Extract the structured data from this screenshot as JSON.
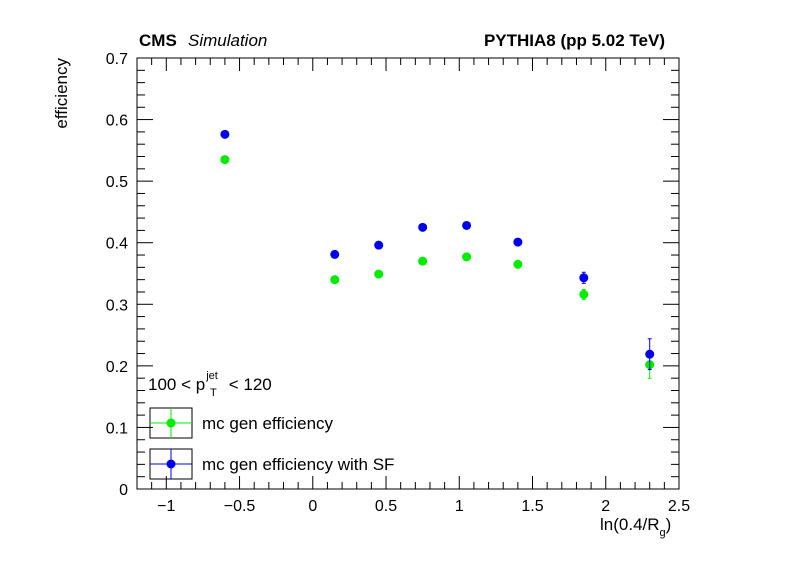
{
  "header": {
    "left_bold": "CMS",
    "left_italic": "Simulation",
    "right": "PYTHIA8 (pp 5.02 TeV)"
  },
  "annotation": {
    "prefix": "100 < p",
    "sup": "jet",
    "sub": "T",
    "suffix": " < 120"
  },
  "chart_data": {
    "type": "scatter",
    "ylabel": "efficiency",
    "xlabel": {
      "main": "ln(0.4/R",
      "sub": "g",
      "close": ")"
    },
    "xlim": [
      -1.2,
      2.5
    ],
    "ylim": [
      0,
      0.7
    ],
    "x_ticks": [
      {
        "value": -1,
        "label": "−1"
      },
      {
        "value": -0.5,
        "label": "−0.5"
      },
      {
        "value": 0,
        "label": "0"
      },
      {
        "value": 0.5,
        "label": "0.5"
      },
      {
        "value": 1,
        "label": "1"
      },
      {
        "value": 1.5,
        "label": "1.5"
      },
      {
        "value": 2,
        "label": "2"
      },
      {
        "value": 2.5,
        "label": "2.5"
      }
    ],
    "y_ticks": [
      {
        "value": 0,
        "label": "0"
      },
      {
        "value": 0.1,
        "label": "0.1"
      },
      {
        "value": 0.2,
        "label": "0.2"
      },
      {
        "value": 0.3,
        "label": "0.3"
      },
      {
        "value": 0.4,
        "label": "0.4"
      },
      {
        "value": 0.5,
        "label": "0.5"
      },
      {
        "value": 0.6,
        "label": "0.6"
      },
      {
        "value": 0.7,
        "label": "0.7"
      }
    ],
    "grid": false,
    "legend_position": "bottom-left",
    "series": [
      {
        "name": "mc gen efficiency",
        "color": "#00ee00",
        "x": [
          -0.6,
          0.15,
          0.45,
          0.75,
          1.05,
          1.4,
          1.85,
          2.3
        ],
        "y": [
          0.535,
          0.34,
          0.349,
          0.37,
          0.377,
          0.365,
          0.316,
          0.202
        ],
        "err": [
          0.003,
          0.003,
          0.003,
          0.003,
          0.003,
          0.003,
          0.008,
          0.022
        ]
      },
      {
        "name": "mc gen efficiency with SF",
        "color": "#0000ee",
        "x": [
          -0.6,
          0.15,
          0.45,
          0.75,
          1.05,
          1.4,
          1.85,
          2.3
        ],
        "y": [
          0.576,
          0.381,
          0.396,
          0.425,
          0.428,
          0.401,
          0.343,
          0.219
        ],
        "err": [
          0.003,
          0.003,
          0.003,
          0.003,
          0.003,
          0.003,
          0.009,
          0.025
        ]
      }
    ]
  }
}
